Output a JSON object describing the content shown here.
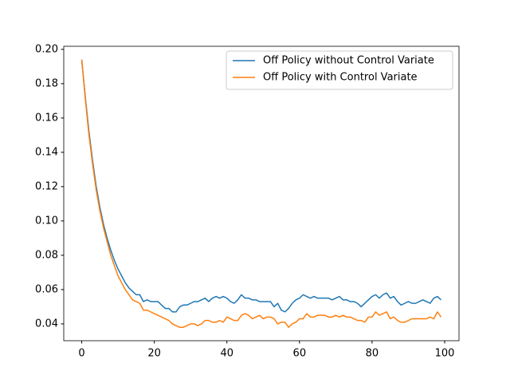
{
  "chart_data": {
    "type": "line",
    "x": [
      0,
      1,
      2,
      3,
      4,
      5,
      6,
      7,
      8,
      9,
      10,
      11,
      12,
      13,
      14,
      15,
      16,
      17,
      18,
      19,
      20,
      21,
      22,
      23,
      24,
      25,
      26,
      27,
      28,
      29,
      30,
      31,
      32,
      33,
      34,
      35,
      36,
      37,
      38,
      39,
      40,
      41,
      42,
      43,
      44,
      45,
      46,
      47,
      48,
      49,
      50,
      51,
      52,
      53,
      54,
      55,
      56,
      57,
      58,
      59,
      60,
      61,
      62,
      63,
      64,
      65,
      66,
      67,
      68,
      69,
      70,
      71,
      72,
      73,
      74,
      75,
      76,
      77,
      78,
      79,
      80,
      81,
      82,
      83,
      84,
      85,
      86,
      87,
      88,
      89,
      90,
      91,
      92,
      93,
      94,
      95,
      96,
      97,
      98,
      99
    ],
    "series": [
      {
        "name": "Off Policy without Control Variate",
        "color": "#1f77b4",
        "values": [
          0.194,
          0.172,
          0.152,
          0.135,
          0.12,
          0.108,
          0.098,
          0.09,
          0.083,
          0.077,
          0.072,
          0.068,
          0.064,
          0.061,
          0.059,
          0.057,
          0.057,
          0.053,
          0.054,
          0.053,
          0.053,
          0.053,
          0.051,
          0.049,
          0.049,
          0.047,
          0.047,
          0.05,
          0.051,
          0.051,
          0.052,
          0.053,
          0.053,
          0.054,
          0.055,
          0.053,
          0.055,
          0.056,
          0.055,
          0.056,
          0.055,
          0.053,
          0.052,
          0.054,
          0.057,
          0.055,
          0.055,
          0.054,
          0.054,
          0.053,
          0.053,
          0.053,
          0.053,
          0.05,
          0.052,
          0.048,
          0.047,
          0.049,
          0.052,
          0.054,
          0.055,
          0.057,
          0.056,
          0.055,
          0.056,
          0.055,
          0.055,
          0.055,
          0.055,
          0.054,
          0.055,
          0.056,
          0.054,
          0.054,
          0.053,
          0.053,
          0.052,
          0.05,
          0.052,
          0.054,
          0.056,
          0.057,
          0.055,
          0.057,
          0.058,
          0.055,
          0.056,
          0.053,
          0.051,
          0.052,
          0.053,
          0.052,
          0.052,
          0.053,
          0.054,
          0.053,
          0.052,
          0.055,
          0.056,
          0.054
        ]
      },
      {
        "name": "Off Policy with Control Variate",
        "color": "#ff7f0e",
        "values": [
          0.194,
          0.171,
          0.15,
          0.133,
          0.118,
          0.106,
          0.096,
          0.088,
          0.08,
          0.074,
          0.068,
          0.064,
          0.06,
          0.057,
          0.054,
          0.053,
          0.052,
          0.048,
          0.048,
          0.047,
          0.046,
          0.045,
          0.044,
          0.043,
          0.042,
          0.04,
          0.039,
          0.038,
          0.038,
          0.039,
          0.04,
          0.04,
          0.039,
          0.04,
          0.042,
          0.042,
          0.041,
          0.041,
          0.042,
          0.041,
          0.044,
          0.043,
          0.042,
          0.042,
          0.045,
          0.046,
          0.045,
          0.043,
          0.044,
          0.045,
          0.043,
          0.044,
          0.044,
          0.043,
          0.04,
          0.041,
          0.041,
          0.038,
          0.04,
          0.041,
          0.043,
          0.043,
          0.046,
          0.044,
          0.044,
          0.045,
          0.045,
          0.045,
          0.044,
          0.044,
          0.045,
          0.044,
          0.045,
          0.044,
          0.044,
          0.043,
          0.042,
          0.042,
          0.041,
          0.044,
          0.044,
          0.047,
          0.045,
          0.046,
          0.047,
          0.043,
          0.044,
          0.042,
          0.041,
          0.041,
          0.042,
          0.043,
          0.043,
          0.043,
          0.043,
          0.043,
          0.044,
          0.043,
          0.047,
          0.044
        ]
      }
    ],
    "xlim": [
      -4.95,
      103.95
    ],
    "xticks": [
      0,
      20,
      40,
      60,
      80,
      100
    ],
    "ylim": [
      0.0302,
      0.2018
    ],
    "yticks": [
      0.04,
      0.06,
      0.08,
      {
        "value": 0.1,
        "label": "0.10"
      },
      0.12,
      0.14,
      0.16,
      0.18,
      {
        "value": 0.2,
        "label": "0.20"
      }
    ],
    "legend": "upper right"
  }
}
